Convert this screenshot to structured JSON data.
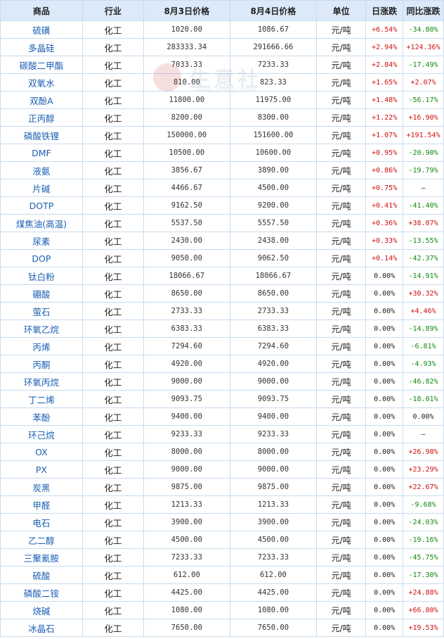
{
  "headers": [
    "商品",
    "行业",
    "8月3日价格",
    "8月4日价格",
    "单位",
    "日涨跌",
    "同比涨跌"
  ],
  "watermark": {
    "text": "生意社",
    "url": "www.100ppi.com"
  },
  "rows": [
    {
      "name": "硫磺",
      "industry": "化工",
      "p1": "1020.00",
      "p2": "1086.67",
      "unit": "元/吨",
      "day": "+6.54%",
      "yoy": "-34.80%"
    },
    {
      "name": "多晶硅",
      "industry": "化工",
      "p1": "283333.34",
      "p2": "291666.66",
      "unit": "元/吨",
      "day": "+2.94%",
      "yoy": "+124.36%"
    },
    {
      "name": "碳酸二甲酯",
      "industry": "化工",
      "p1": "7033.33",
      "p2": "7233.33",
      "unit": "元/吨",
      "day": "+2.84%",
      "yoy": "-17.49%"
    },
    {
      "name": "双氧水",
      "industry": "化工",
      "p1": "810.00",
      "p2": "823.33",
      "unit": "元/吨",
      "day": "+1.65%",
      "yoy": "+2.07%"
    },
    {
      "name": "双酚A",
      "industry": "化工",
      "p1": "11800.00",
      "p2": "11975.00",
      "unit": "元/吨",
      "day": "+1.48%",
      "yoy": "-56.17%"
    },
    {
      "name": "正丙醇",
      "industry": "化工",
      "p1": "8200.00",
      "p2": "8300.00",
      "unit": "元/吨",
      "day": "+1.22%",
      "yoy": "+16.90%"
    },
    {
      "name": "磷酸铁锂",
      "industry": "化工",
      "p1": "150000.00",
      "p2": "151600.00",
      "unit": "元/吨",
      "day": "+1.07%",
      "yoy": "+191.54%"
    },
    {
      "name": "DMF",
      "industry": "化工",
      "p1": "10500.00",
      "p2": "10600.00",
      "unit": "元/吨",
      "day": "+0.95%",
      "yoy": "-20.90%"
    },
    {
      "name": "液氨",
      "industry": "化工",
      "p1": "3856.67",
      "p2": "3890.00",
      "unit": "元/吨",
      "day": "+0.86%",
      "yoy": "-19.79%"
    },
    {
      "name": "片碱",
      "industry": "化工",
      "p1": "4466.67",
      "p2": "4500.00",
      "unit": "元/吨",
      "day": "+0.75%",
      "yoy": "—"
    },
    {
      "name": "DOTP",
      "industry": "化工",
      "p1": "9162.50",
      "p2": "9200.00",
      "unit": "元/吨",
      "day": "+0.41%",
      "yoy": "-41.40%"
    },
    {
      "name": "煤焦油(高温)",
      "industry": "化工",
      "p1": "5537.50",
      "p2": "5557.50",
      "unit": "元/吨",
      "day": "+0.36%",
      "yoy": "+38.07%"
    },
    {
      "name": "尿素",
      "industry": "化工",
      "p1": "2430.00",
      "p2": "2438.00",
      "unit": "元/吨",
      "day": "+0.33%",
      "yoy": "-13.55%"
    },
    {
      "name": "DOP",
      "industry": "化工",
      "p1": "9050.00",
      "p2": "9062.50",
      "unit": "元/吨",
      "day": "+0.14%",
      "yoy": "-42.37%"
    },
    {
      "name": "钛白粉",
      "industry": "化工",
      "p1": "18066.67",
      "p2": "18066.67",
      "unit": "元/吨",
      "day": "0.00%",
      "yoy": "-14.91%"
    },
    {
      "name": "硼酸",
      "industry": "化工",
      "p1": "8650.00",
      "p2": "8650.00",
      "unit": "元/吨",
      "day": "0.00%",
      "yoy": "+30.32%"
    },
    {
      "name": "萤石",
      "industry": "化工",
      "p1": "2733.33",
      "p2": "2733.33",
      "unit": "元/吨",
      "day": "0.00%",
      "yoy": "+4.46%"
    },
    {
      "name": "环氧乙烷",
      "industry": "化工",
      "p1": "6383.33",
      "p2": "6383.33",
      "unit": "元/吨",
      "day": "0.00%",
      "yoy": "-14.89%"
    },
    {
      "name": "丙烯",
      "industry": "化工",
      "p1": "7294.60",
      "p2": "7294.60",
      "unit": "元/吨",
      "day": "0.00%",
      "yoy": "-6.81%"
    },
    {
      "name": "丙酮",
      "industry": "化工",
      "p1": "4920.00",
      "p2": "4920.00",
      "unit": "元/吨",
      "day": "0.00%",
      "yoy": "-4.93%"
    },
    {
      "name": "环氧丙烷",
      "industry": "化工",
      "p1": "9000.00",
      "p2": "9000.00",
      "unit": "元/吨",
      "day": "0.00%",
      "yoy": "-46.82%"
    },
    {
      "name": "丁二烯",
      "industry": "化工",
      "p1": "9093.75",
      "p2": "9093.75",
      "unit": "元/吨",
      "day": "0.00%",
      "yoy": "-18.01%"
    },
    {
      "name": "苯酚",
      "industry": "化工",
      "p1": "9400.00",
      "p2": "9400.00",
      "unit": "元/吨",
      "day": "0.00%",
      "yoy": "0.00%"
    },
    {
      "name": "环己烷",
      "industry": "化工",
      "p1": "9233.33",
      "p2": "9233.33",
      "unit": "元/吨",
      "day": "0.00%",
      "yoy": "—"
    },
    {
      "name": "OX",
      "industry": "化工",
      "p1": "8000.00",
      "p2": "8000.00",
      "unit": "元/吨",
      "day": "0.00%",
      "yoy": "+26.98%"
    },
    {
      "name": "PX",
      "industry": "化工",
      "p1": "9000.00",
      "p2": "9000.00",
      "unit": "元/吨",
      "day": "0.00%",
      "yoy": "+23.29%"
    },
    {
      "name": "炭黑",
      "industry": "化工",
      "p1": "9875.00",
      "p2": "9875.00",
      "unit": "元/吨",
      "day": "0.00%",
      "yoy": "+22.67%"
    },
    {
      "name": "甲醛",
      "industry": "化工",
      "p1": "1213.33",
      "p2": "1213.33",
      "unit": "元/吨",
      "day": "0.00%",
      "yoy": "-9.68%"
    },
    {
      "name": "电石",
      "industry": "化工",
      "p1": "3900.00",
      "p2": "3900.00",
      "unit": "元/吨",
      "day": "0.00%",
      "yoy": "-24.03%"
    },
    {
      "name": "乙二醇",
      "industry": "化工",
      "p1": "4500.00",
      "p2": "4500.00",
      "unit": "元/吨",
      "day": "0.00%",
      "yoy": "-19.16%"
    },
    {
      "name": "三聚氰胺",
      "industry": "化工",
      "p1": "7233.33",
      "p2": "7233.33",
      "unit": "元/吨",
      "day": "0.00%",
      "yoy": "-45.75%"
    },
    {
      "name": "硫酸",
      "industry": "化工",
      "p1": "612.00",
      "p2": "612.00",
      "unit": "元/吨",
      "day": "0.00%",
      "yoy": "-17.30%"
    },
    {
      "name": "磷酸二铵",
      "industry": "化工",
      "p1": "4425.00",
      "p2": "4425.00",
      "unit": "元/吨",
      "day": "0.00%",
      "yoy": "+24.88%"
    },
    {
      "name": "烧碱",
      "industry": "化工",
      "p1": "1080.00",
      "p2": "1080.00",
      "unit": "元/吨",
      "day": "0.00%",
      "yoy": "+66.80%"
    },
    {
      "name": "冰晶石",
      "industry": "化工",
      "p1": "7650.00",
      "p2": "7650.00",
      "unit": "元/吨",
      "day": "0.00%",
      "yoy": "+19.53%"
    }
  ]
}
